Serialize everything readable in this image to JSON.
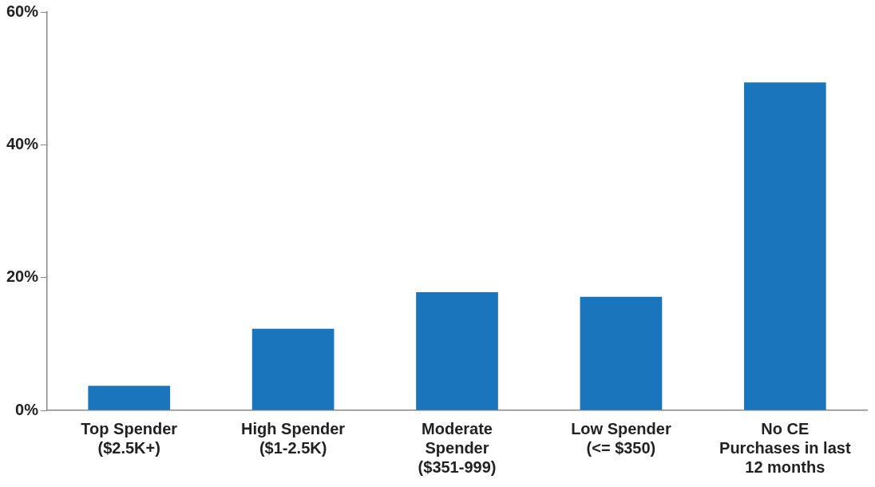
{
  "chart_data": {
    "type": "bar",
    "categories": [
      "Top Spender\n($2.5K+)",
      "High Spender\n($1-2.5K)",
      "Moderate\nSpender\n($351-999)",
      "Low Spender\n(<= $350)",
      "No CE\nPurchases in last\n12 months"
    ],
    "values": [
      3.7,
      12.3,
      17.8,
      17.1,
      49.4
    ],
    "color": "#1b75bc",
    "ylim": [
      0,
      60
    ],
    "yticks": [
      {
        "value": 0,
        "label": "0%"
      },
      {
        "value": 20,
        "label": "20%"
      },
      {
        "value": 40,
        "label": "40%"
      },
      {
        "value": 60,
        "label": "60%"
      }
    ],
    "grid": false,
    "legend": false
  }
}
